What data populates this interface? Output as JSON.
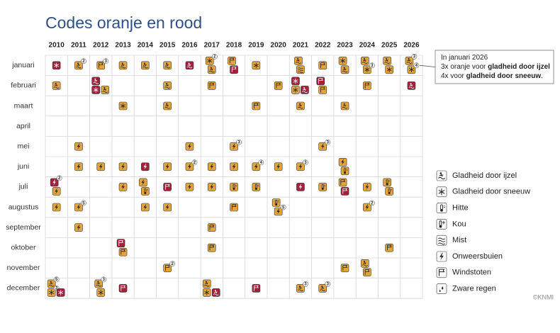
{
  "chart_data": {
    "type": "calendar-grid",
    "title": "Codes oranje en rood",
    "source": "©KNMI",
    "colors": {
      "oranje": "#e2a43c",
      "rood": "#a4213c"
    },
    "years": [
      "2010",
      "2011",
      "2012",
      "2013",
      "2014",
      "2015",
      "2016",
      "2017",
      "2018",
      "2019",
      "2020",
      "2021",
      "2022",
      "2023",
      "2024",
      "2025",
      "2026"
    ],
    "months": [
      "januari",
      "februari",
      "maart",
      "april",
      "mei",
      "juni",
      "juli",
      "augustus",
      "september",
      "oktober",
      "november",
      "december"
    ],
    "legend": [
      {
        "name": "Gladheid door ijzel"
      },
      {
        "name": "Gladheid door sneeuw"
      },
      {
        "name": "Hitte"
      },
      {
        "name": "Kou"
      },
      {
        "name": "Mist"
      },
      {
        "name": "Onweersbuien"
      },
      {
        "name": "Windstoten"
      },
      {
        "name": "Zware regen"
      }
    ],
    "annotation": {
      "year": "2026",
      "month": "januari",
      "lines": [
        [
          {
            "text": "In januari 2026"
          }
        ],
        [
          {
            "text": "3x oranje voor "
          },
          {
            "text": "gladheid door ijzel",
            "bold": true
          }
        ],
        [
          {
            "text": "4x voor "
          },
          {
            "text": "gladheid door sneeuw",
            "bold": true
          },
          {
            "text": "."
          }
        ]
      ]
    },
    "events": [
      {
        "year": "2010",
        "month": "januari",
        "items": [
          {
            "kind": "Gladheid door sneeuw",
            "code": "rood"
          }
        ]
      },
      {
        "year": "2011",
        "month": "januari",
        "items": [
          {
            "kind": "Gladheid door ijzel",
            "code": "oranje",
            "count": 2
          }
        ]
      },
      {
        "year": "2012",
        "month": "januari",
        "items": [
          {
            "kind": "Windstoten",
            "code": "oranje",
            "count": 3
          }
        ]
      },
      {
        "year": "2013",
        "month": "januari",
        "items": [
          {
            "kind": "Gladheid door ijzel",
            "code": "oranje"
          }
        ]
      },
      {
        "year": "2014",
        "month": "januari",
        "items": [
          {
            "kind": "Gladheid door ijzel",
            "code": "oranje"
          }
        ]
      },
      {
        "year": "2015",
        "month": "januari",
        "items": [
          {
            "kind": "Gladheid door ijzel",
            "code": "oranje"
          }
        ]
      },
      {
        "year": "2016",
        "month": "januari",
        "items": [
          {
            "kind": "Gladheid door ijzel",
            "code": "rood"
          }
        ]
      },
      {
        "year": "2017",
        "month": "januari",
        "items": [
          {
            "kind": "Gladheid door sneeuw",
            "code": "oranje",
            "count": 2
          },
          {
            "kind": "Gladheid door ijzel",
            "code": "oranje"
          }
        ]
      },
      {
        "year": "2018",
        "month": "januari",
        "items": [
          {
            "kind": "Windstoten",
            "code": "oranje"
          },
          {
            "kind": "Windstoten",
            "code": "rood"
          }
        ]
      },
      {
        "year": "2019",
        "month": "januari",
        "items": [
          {
            "kind": "Gladheid door sneeuw",
            "code": "oranje"
          }
        ]
      },
      {
        "year": "2021",
        "month": "januari",
        "items": [
          {
            "kind": "Gladheid door ijzel",
            "code": "oranje"
          },
          {
            "kind": "Mist",
            "code": "oranje"
          }
        ]
      },
      {
        "year": "2022",
        "month": "januari",
        "items": [
          {
            "kind": "Windstoten",
            "code": "oranje"
          }
        ]
      },
      {
        "year": "2023",
        "month": "januari",
        "items": [
          {
            "kind": "Gladheid door sneeuw",
            "code": "oranje"
          },
          {
            "kind": "Gladheid door ijzel",
            "code": "oranje"
          }
        ]
      },
      {
        "year": "2024",
        "month": "januari",
        "items": [
          {
            "kind": "Gladheid door ijzel",
            "code": "oranje"
          },
          {
            "kind": "Gladheid door sneeuw",
            "code": "oranje",
            "count": 3
          }
        ]
      },
      {
        "year": "2025",
        "month": "januari",
        "items": [
          {
            "kind": "Gladheid door ijzel",
            "code": "oranje"
          },
          {
            "kind": "Gladheid door sneeuw",
            "code": "oranje"
          }
        ]
      },
      {
        "year": "2026",
        "month": "januari",
        "items": [
          {
            "kind": "Gladheid door ijzel",
            "code": "oranje",
            "count": 3
          },
          {
            "kind": "Gladheid door sneeuw",
            "code": "oranje",
            "count": 4
          }
        ]
      },
      {
        "year": "2010",
        "month": "februari",
        "items": [
          {
            "kind": "Gladheid door ijzel",
            "code": "oranje"
          }
        ]
      },
      {
        "year": "2012",
        "month": "februari",
        "items": [
          {
            "kind": "Gladheid door ijzel",
            "code": "rood"
          },
          {
            "kind": "Gladheid door sneeuw",
            "code": "rood"
          },
          {
            "kind": "Gladheid door ijzel",
            "code": "oranje"
          }
        ]
      },
      {
        "year": "2015",
        "month": "februari",
        "items": [
          {
            "kind": "Gladheid door ijzel",
            "code": "oranje"
          }
        ]
      },
      {
        "year": "2017",
        "month": "februari",
        "items": [
          {
            "kind": "Windstoten",
            "code": "oranje"
          }
        ]
      },
      {
        "year": "2020",
        "month": "februari",
        "items": [
          {
            "kind": "Windstoten",
            "code": "oranje"
          }
        ]
      },
      {
        "year": "2021",
        "month": "februari",
        "items": [
          {
            "kind": "Gladheid door sneeuw",
            "code": "rood"
          },
          {
            "kind": "Gladheid door sneeuw",
            "code": "oranje"
          },
          {
            "kind": "Gladheid door ijzel",
            "code": "rood"
          }
        ]
      },
      {
        "year": "2022",
        "month": "februari",
        "items": [
          {
            "kind": "Windstoten",
            "code": "rood"
          },
          {
            "kind": "Windstoten",
            "code": "oranje"
          }
        ]
      },
      {
        "year": "2024",
        "month": "februari",
        "items": [
          {
            "kind": "Windstoten",
            "code": "oranje"
          }
        ]
      },
      {
        "year": "2026",
        "month": "februari",
        "items": [
          {
            "kind": "Gladheid door ijzel",
            "code": "rood"
          }
        ]
      },
      {
        "year": "2013",
        "month": "maart",
        "items": [
          {
            "kind": "Gladheid door sneeuw",
            "code": "oranje"
          }
        ]
      },
      {
        "year": "2015",
        "month": "maart",
        "items": [
          {
            "kind": "Gladheid door ijzel",
            "code": "oranje"
          }
        ]
      },
      {
        "year": "2019",
        "month": "maart",
        "items": [
          {
            "kind": "Windstoten",
            "code": "oranje"
          }
        ]
      },
      {
        "year": "2021",
        "month": "maart",
        "items": [
          {
            "kind": "Gladheid door ijzel",
            "code": "oranje"
          }
        ]
      },
      {
        "year": "2023",
        "month": "maart",
        "items": [
          {
            "kind": "Gladheid door ijzel",
            "code": "oranje"
          }
        ]
      },
      {
        "year": "2011",
        "month": "mei",
        "items": [
          {
            "kind": "Onweersbuien",
            "code": "oranje"
          }
        ]
      },
      {
        "year": "2016",
        "month": "mei",
        "items": [
          {
            "kind": "Onweersbuien",
            "code": "oranje"
          }
        ]
      },
      {
        "year": "2018",
        "month": "mei",
        "items": [
          {
            "kind": "Onweersbuien",
            "code": "oranje",
            "count": 3
          }
        ]
      },
      {
        "year": "2022",
        "month": "mei",
        "items": [
          {
            "kind": "Onweersbuien",
            "code": "oranje",
            "count": 3
          }
        ]
      },
      {
        "year": "2011",
        "month": "juni",
        "items": [
          {
            "kind": "Onweersbuien",
            "code": "oranje"
          }
        ]
      },
      {
        "year": "2012",
        "month": "juni",
        "items": [
          {
            "kind": "Onweersbuien",
            "code": "oranje"
          }
        ]
      },
      {
        "year": "2013",
        "month": "juni",
        "items": [
          {
            "kind": "Onweersbuien",
            "code": "oranje"
          }
        ]
      },
      {
        "year": "2014",
        "month": "juni",
        "items": [
          {
            "kind": "Onweersbuien",
            "code": "rood"
          }
        ]
      },
      {
        "year": "2015",
        "month": "juni",
        "items": [
          {
            "kind": "Onweersbuien",
            "code": "oranje"
          }
        ]
      },
      {
        "year": "2016",
        "month": "juni",
        "items": [
          {
            "kind": "Onweersbuien",
            "code": "oranje",
            "count": 2
          }
        ]
      },
      {
        "year": "2017",
        "month": "juni",
        "items": [
          {
            "kind": "Onweersbuien",
            "code": "oranje"
          }
        ]
      },
      {
        "year": "2018",
        "month": "juni",
        "items": [
          {
            "kind": "Onweersbuien",
            "code": "oranje"
          }
        ]
      },
      {
        "year": "2019",
        "month": "juni",
        "items": [
          {
            "kind": "Onweersbuien",
            "code": "oranje",
            "count": 4
          }
        ]
      },
      {
        "year": "2020",
        "month": "juni",
        "items": [
          {
            "kind": "Onweersbuien",
            "code": "oranje"
          }
        ]
      },
      {
        "year": "2021",
        "month": "juni",
        "items": [
          {
            "kind": "Onweersbuien",
            "code": "oranje",
            "count": 3
          }
        ]
      },
      {
        "year": "2023",
        "month": "juni",
        "items": [
          {
            "kind": "Onweersbuien",
            "code": "oranje"
          },
          {
            "kind": "Hitte",
            "code": "oranje"
          }
        ]
      },
      {
        "year": "2010",
        "month": "juli",
        "items": [
          {
            "kind": "Onweersbuien",
            "code": "rood",
            "count": 2
          },
          {
            "kind": "Onweersbuien",
            "code": "oranje"
          }
        ]
      },
      {
        "year": "2013",
        "month": "juli",
        "items": [
          {
            "kind": "Onweersbuien",
            "code": "oranje"
          }
        ]
      },
      {
        "year": "2014",
        "month": "juli",
        "items": [
          {
            "kind": "Onweersbuien",
            "code": "oranje"
          },
          {
            "kind": "Hitte",
            "code": "oranje"
          }
        ]
      },
      {
        "year": "2015",
        "month": "juli",
        "items": [
          {
            "kind": "Windstoten",
            "code": "rood"
          }
        ]
      },
      {
        "year": "2016",
        "month": "juli",
        "items": [
          {
            "kind": "Onweersbuien",
            "code": "oranje"
          }
        ]
      },
      {
        "year": "2017",
        "month": "juli",
        "items": [
          {
            "kind": "Onweersbuien",
            "code": "oranje"
          }
        ]
      },
      {
        "year": "2018",
        "month": "juli",
        "items": [
          {
            "kind": "Hitte",
            "code": "oranje"
          }
        ]
      },
      {
        "year": "2019",
        "month": "juli",
        "items": [
          {
            "kind": "Hitte",
            "code": "oranje"
          }
        ]
      },
      {
        "year": "2021",
        "month": "juli",
        "items": [
          {
            "kind": "Onweersbuien",
            "code": "rood"
          }
        ]
      },
      {
        "year": "2022",
        "month": "juli",
        "items": [
          {
            "kind": "Hitte",
            "code": "oranje"
          }
        ]
      },
      {
        "year": "2023",
        "month": "juli",
        "items": [
          {
            "kind": "Windstoten",
            "code": "oranje"
          },
          {
            "kind": "Windstoten",
            "code": "rood"
          }
        ]
      },
      {
        "year": "2024",
        "month": "juli",
        "items": [
          {
            "kind": "Onweersbuien",
            "code": "oranje"
          }
        ]
      },
      {
        "year": "2025",
        "month": "juli",
        "items": [
          {
            "kind": "Hitte",
            "code": "oranje"
          },
          {
            "kind": "Hitte",
            "code": "oranje"
          }
        ]
      },
      {
        "year": "2010",
        "month": "augustus",
        "items": [
          {
            "kind": "Onweersbuien",
            "code": "oranje"
          }
        ]
      },
      {
        "year": "2011",
        "month": "augustus",
        "items": [
          {
            "kind": "Onweersbuien",
            "code": "oranje",
            "count": 5
          }
        ]
      },
      {
        "year": "2014",
        "month": "augustus",
        "items": [
          {
            "kind": "Onweersbuien",
            "code": "oranje"
          }
        ]
      },
      {
        "year": "2015",
        "month": "augustus",
        "items": [
          {
            "kind": "Onweersbuien",
            "code": "oranje"
          }
        ]
      },
      {
        "year": "2018",
        "month": "augustus",
        "items": [
          {
            "kind": "Windstoten",
            "code": "oranje"
          }
        ]
      },
      {
        "year": "2020",
        "month": "augustus",
        "items": [
          {
            "kind": "Hitte",
            "code": "oranje"
          },
          {
            "kind": "Onweersbuien",
            "code": "oranje",
            "count": 5
          }
        ]
      },
      {
        "year": "2024",
        "month": "augustus",
        "items": [
          {
            "kind": "Onweersbuien",
            "code": "oranje",
            "count": 2
          }
        ]
      },
      {
        "year": "2011",
        "month": "september",
        "items": [
          {
            "kind": "Onweersbuien",
            "code": "oranje"
          }
        ]
      },
      {
        "year": "2017",
        "month": "september",
        "items": [
          {
            "kind": "Windstoten",
            "code": "oranje"
          }
        ]
      },
      {
        "year": "2013",
        "month": "oktober",
        "items": [
          {
            "kind": "Windstoten",
            "code": "rood"
          },
          {
            "kind": "Windstoten",
            "code": "oranje"
          }
        ]
      },
      {
        "year": "2017",
        "month": "oktober",
        "items": [
          {
            "kind": "Windstoten",
            "code": "oranje"
          }
        ]
      },
      {
        "year": "2025",
        "month": "oktober",
        "items": [
          {
            "kind": "Windstoten",
            "code": "oranje"
          }
        ]
      },
      {
        "year": "2015",
        "month": "november",
        "items": [
          {
            "kind": "Windstoten",
            "code": "oranje",
            "count": 2
          }
        ]
      },
      {
        "year": "2023",
        "month": "november",
        "items": [
          {
            "kind": "Windstoten",
            "code": "oranje"
          }
        ]
      },
      {
        "year": "2024",
        "month": "november",
        "items": [
          {
            "kind": "Gladheid door ijzel",
            "code": "oranje"
          },
          {
            "kind": "Windstoten",
            "code": "oranje"
          }
        ]
      },
      {
        "year": "2010",
        "month": "december",
        "items": [
          {
            "kind": "Gladheid door ijzel",
            "code": "oranje",
            "count": 5
          },
          {
            "kind": "Gladheid door sneeuw",
            "code": "oranje",
            "count": 2
          },
          {
            "kind": "Gladheid door sneeuw",
            "code": "rood"
          }
        ]
      },
      {
        "year": "2012",
        "month": "december",
        "items": [
          {
            "kind": "Gladheid door ijzel",
            "code": "oranje",
            "count": 3
          },
          {
            "kind": "Gladheid door sneeuw",
            "code": "oranje"
          }
        ]
      },
      {
        "year": "2013",
        "month": "december",
        "items": [
          {
            "kind": "Windstoten",
            "code": "rood"
          }
        ]
      },
      {
        "year": "2017",
        "month": "december",
        "items": [
          {
            "kind": "Gladheid door ijzel",
            "code": "oranje"
          },
          {
            "kind": "Gladheid door sneeuw",
            "code": "oranje"
          },
          {
            "kind": "Gladheid door ijzel",
            "code": "rood"
          }
        ]
      },
      {
        "year": "2019",
        "month": "december",
        "items": [
          {
            "kind": "Windstoten",
            "code": "rood"
          }
        ]
      },
      {
        "year": "2021",
        "month": "december",
        "items": [
          {
            "kind": "Gladheid door ijzel",
            "code": "oranje",
            "count": 3
          }
        ]
      },
      {
        "year": "2022",
        "month": "december",
        "items": [
          {
            "kind": "Gladheid door ijzel",
            "code": "oranje",
            "count": 3
          }
        ]
      }
    ]
  }
}
